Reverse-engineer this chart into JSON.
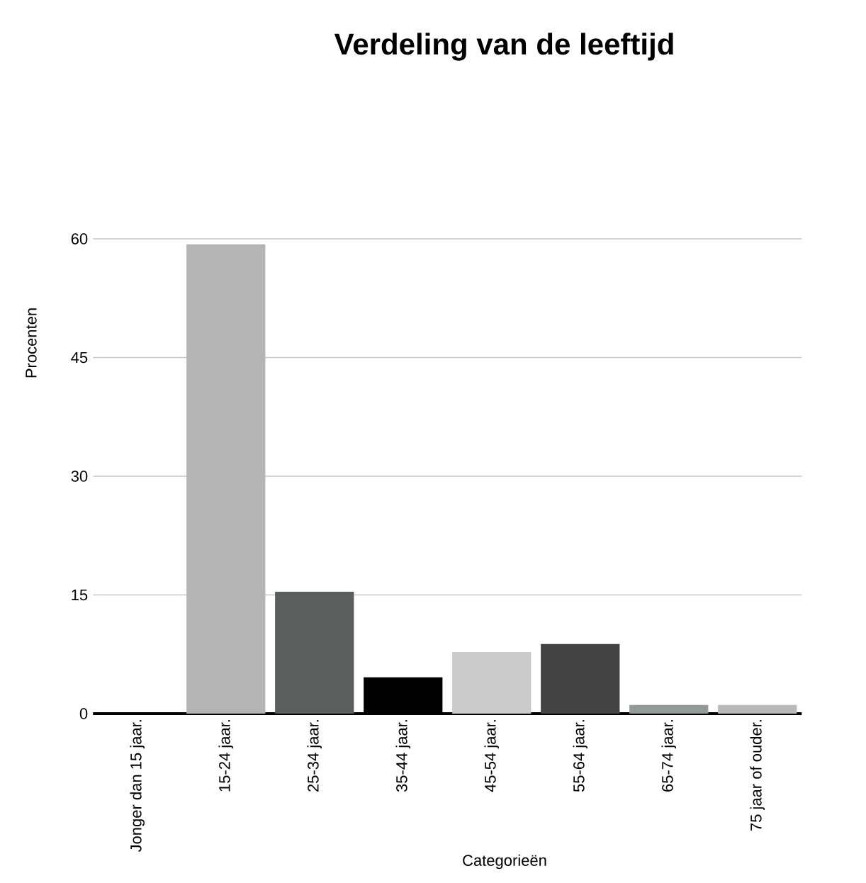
{
  "chart_data": {
    "type": "bar",
    "title": "Verdeling van de leeftijd",
    "xlabel": "Categorieën",
    "ylabel": "Procenten",
    "categories": [
      "Jonger dan 15 jaar.",
      "15-24 jaar.",
      "25-34 jaar.",
      "35-44 jaar.",
      "45-54 jaar.",
      "55-64 jaar.",
      "65-74 jaar.",
      "75 jaar of ouder."
    ],
    "values": [
      0,
      59.3,
      15.4,
      4.6,
      7.8,
      8.8,
      1.1,
      1.1
    ],
    "colors": [
      "#808080",
      "#b4b4b4",
      "#5b5e5d",
      "#000000",
      "#cbcbcb",
      "#434343",
      "#949a98",
      "#b9b9b9"
    ],
    "ylim": [
      0,
      60
    ],
    "yticks": [
      0,
      15,
      30,
      45,
      60
    ],
    "grid": "y"
  }
}
